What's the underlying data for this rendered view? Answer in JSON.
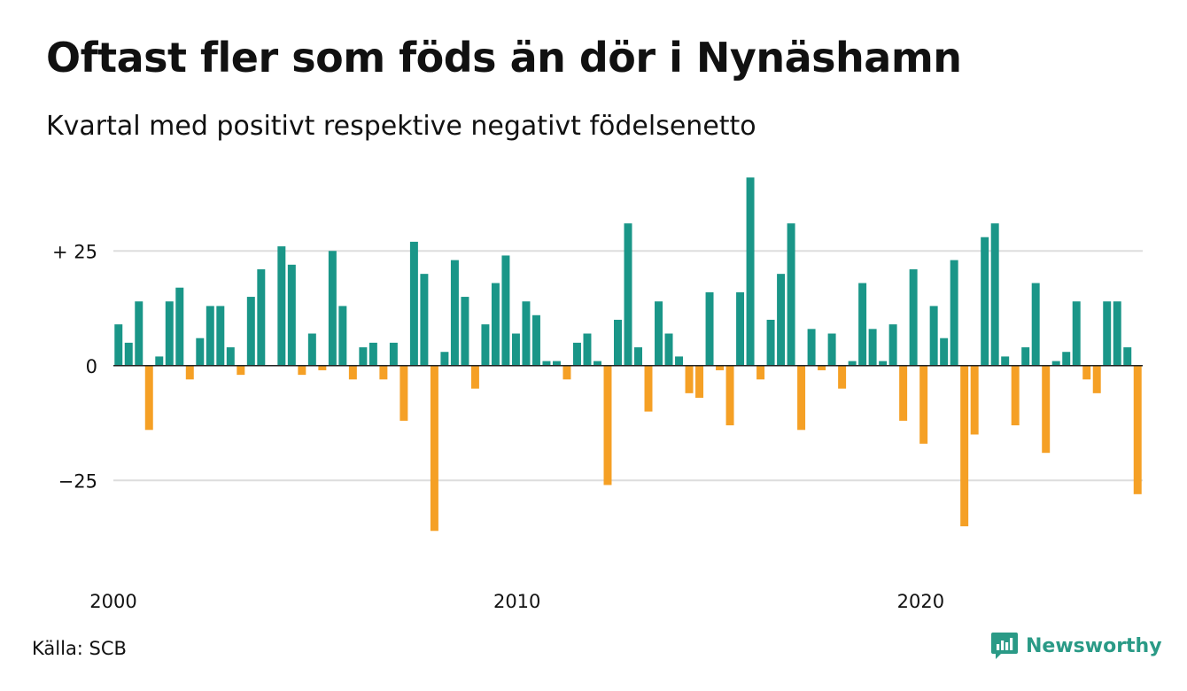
{
  "title": "Oftast fler som föds än dör i Nynäshamn",
  "subtitle": "Kvartal med positivt respektive negativt födelsenetto",
  "source": "Källa: SCB",
  "brand": "Newsworthy",
  "colors": {
    "positive": "#1a9688",
    "negative": "#f5a025",
    "grid": "#dddddd",
    "brand": "#2a9a86"
  },
  "chart_data": {
    "type": "bar",
    "y_ticks": [
      {
        "value": 25,
        "label": "+ 25"
      },
      {
        "value": 0,
        "label": "0"
      },
      {
        "value": -25,
        "label": "−25"
      }
    ],
    "x_ticks": [
      {
        "x": 2000,
        "label": "2000"
      },
      {
        "x": 2010,
        "label": "2010"
      },
      {
        "x": 2020,
        "label": "2020"
      }
    ],
    "ylim": [
      -40,
      43
    ],
    "xlim": [
      2000,
      2025.5
    ],
    "grid": true,
    "quarters_per_year": 4,
    "values": [
      9,
      5,
      14,
      -14,
      2,
      14,
      17,
      -3,
      6,
      13,
      13,
      4,
      -2,
      15,
      21,
      0,
      26,
      22,
      -2,
      7,
      -1,
      25,
      13,
      -3,
      4,
      5,
      -3,
      5,
      -12,
      27,
      20,
      -36,
      3,
      23,
      15,
      -5,
      9,
      18,
      24,
      7,
      14,
      11,
      1,
      1,
      -3,
      5,
      7,
      1,
      -26,
      10,
      31,
      4,
      -10,
      14,
      7,
      2,
      -6,
      -7,
      16,
      -1,
      -13,
      16,
      41,
      -3,
      10,
      20,
      31,
      -14,
      8,
      -1,
      7,
      -5,
      1,
      18,
      8,
      1,
      9,
      -12,
      21,
      -17,
      13,
      6,
      23,
      -35,
      -15,
      28,
      31,
      2,
      -13,
      4,
      18,
      -19,
      1,
      3,
      14,
      -3,
      -6,
      14,
      14,
      4,
      -28
    ]
  }
}
